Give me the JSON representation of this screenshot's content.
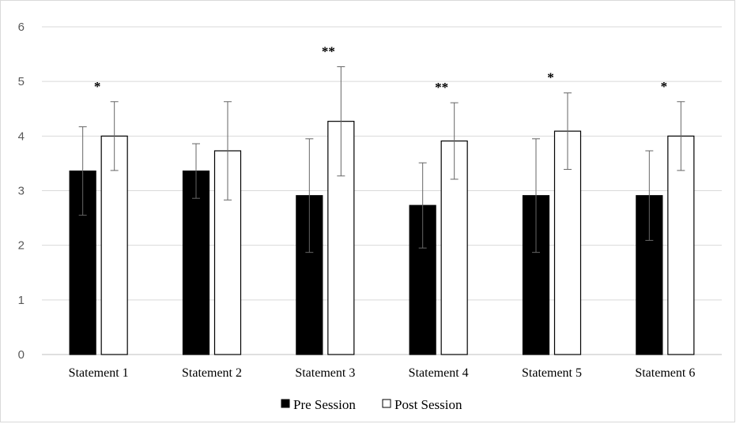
{
  "chart_data": {
    "type": "bar",
    "categories": [
      "Statement 1",
      "Statement 2",
      "Statement 3",
      "Statement 4",
      "Statement 5",
      "Statement 6"
    ],
    "series": [
      {
        "name": "Pre Session",
        "values": [
          3.36,
          3.36,
          2.91,
          2.73,
          2.91,
          2.91
        ],
        "error": [
          0.81,
          0.5,
          1.04,
          0.78,
          1.04,
          0.82
        ],
        "color": "#000000"
      },
      {
        "name": "Post Session",
        "values": [
          4.0,
          3.73,
          4.27,
          3.91,
          4.09,
          4.0
        ],
        "error": [
          0.63,
          0.9,
          1.0,
          0.7,
          0.7,
          0.63
        ],
        "color": "#ffffff"
      }
    ],
    "annotations": [
      "*",
      "",
      "**",
      "**",
      "*",
      "*"
    ],
    "yticks": [
      "0",
      "1",
      "2",
      "3",
      "4",
      "5",
      "6"
    ],
    "ylim": [
      0,
      6
    ],
    "grid": true,
    "legend": "bottom-center",
    "title": "",
    "xlabel": "",
    "ylabel": ""
  }
}
